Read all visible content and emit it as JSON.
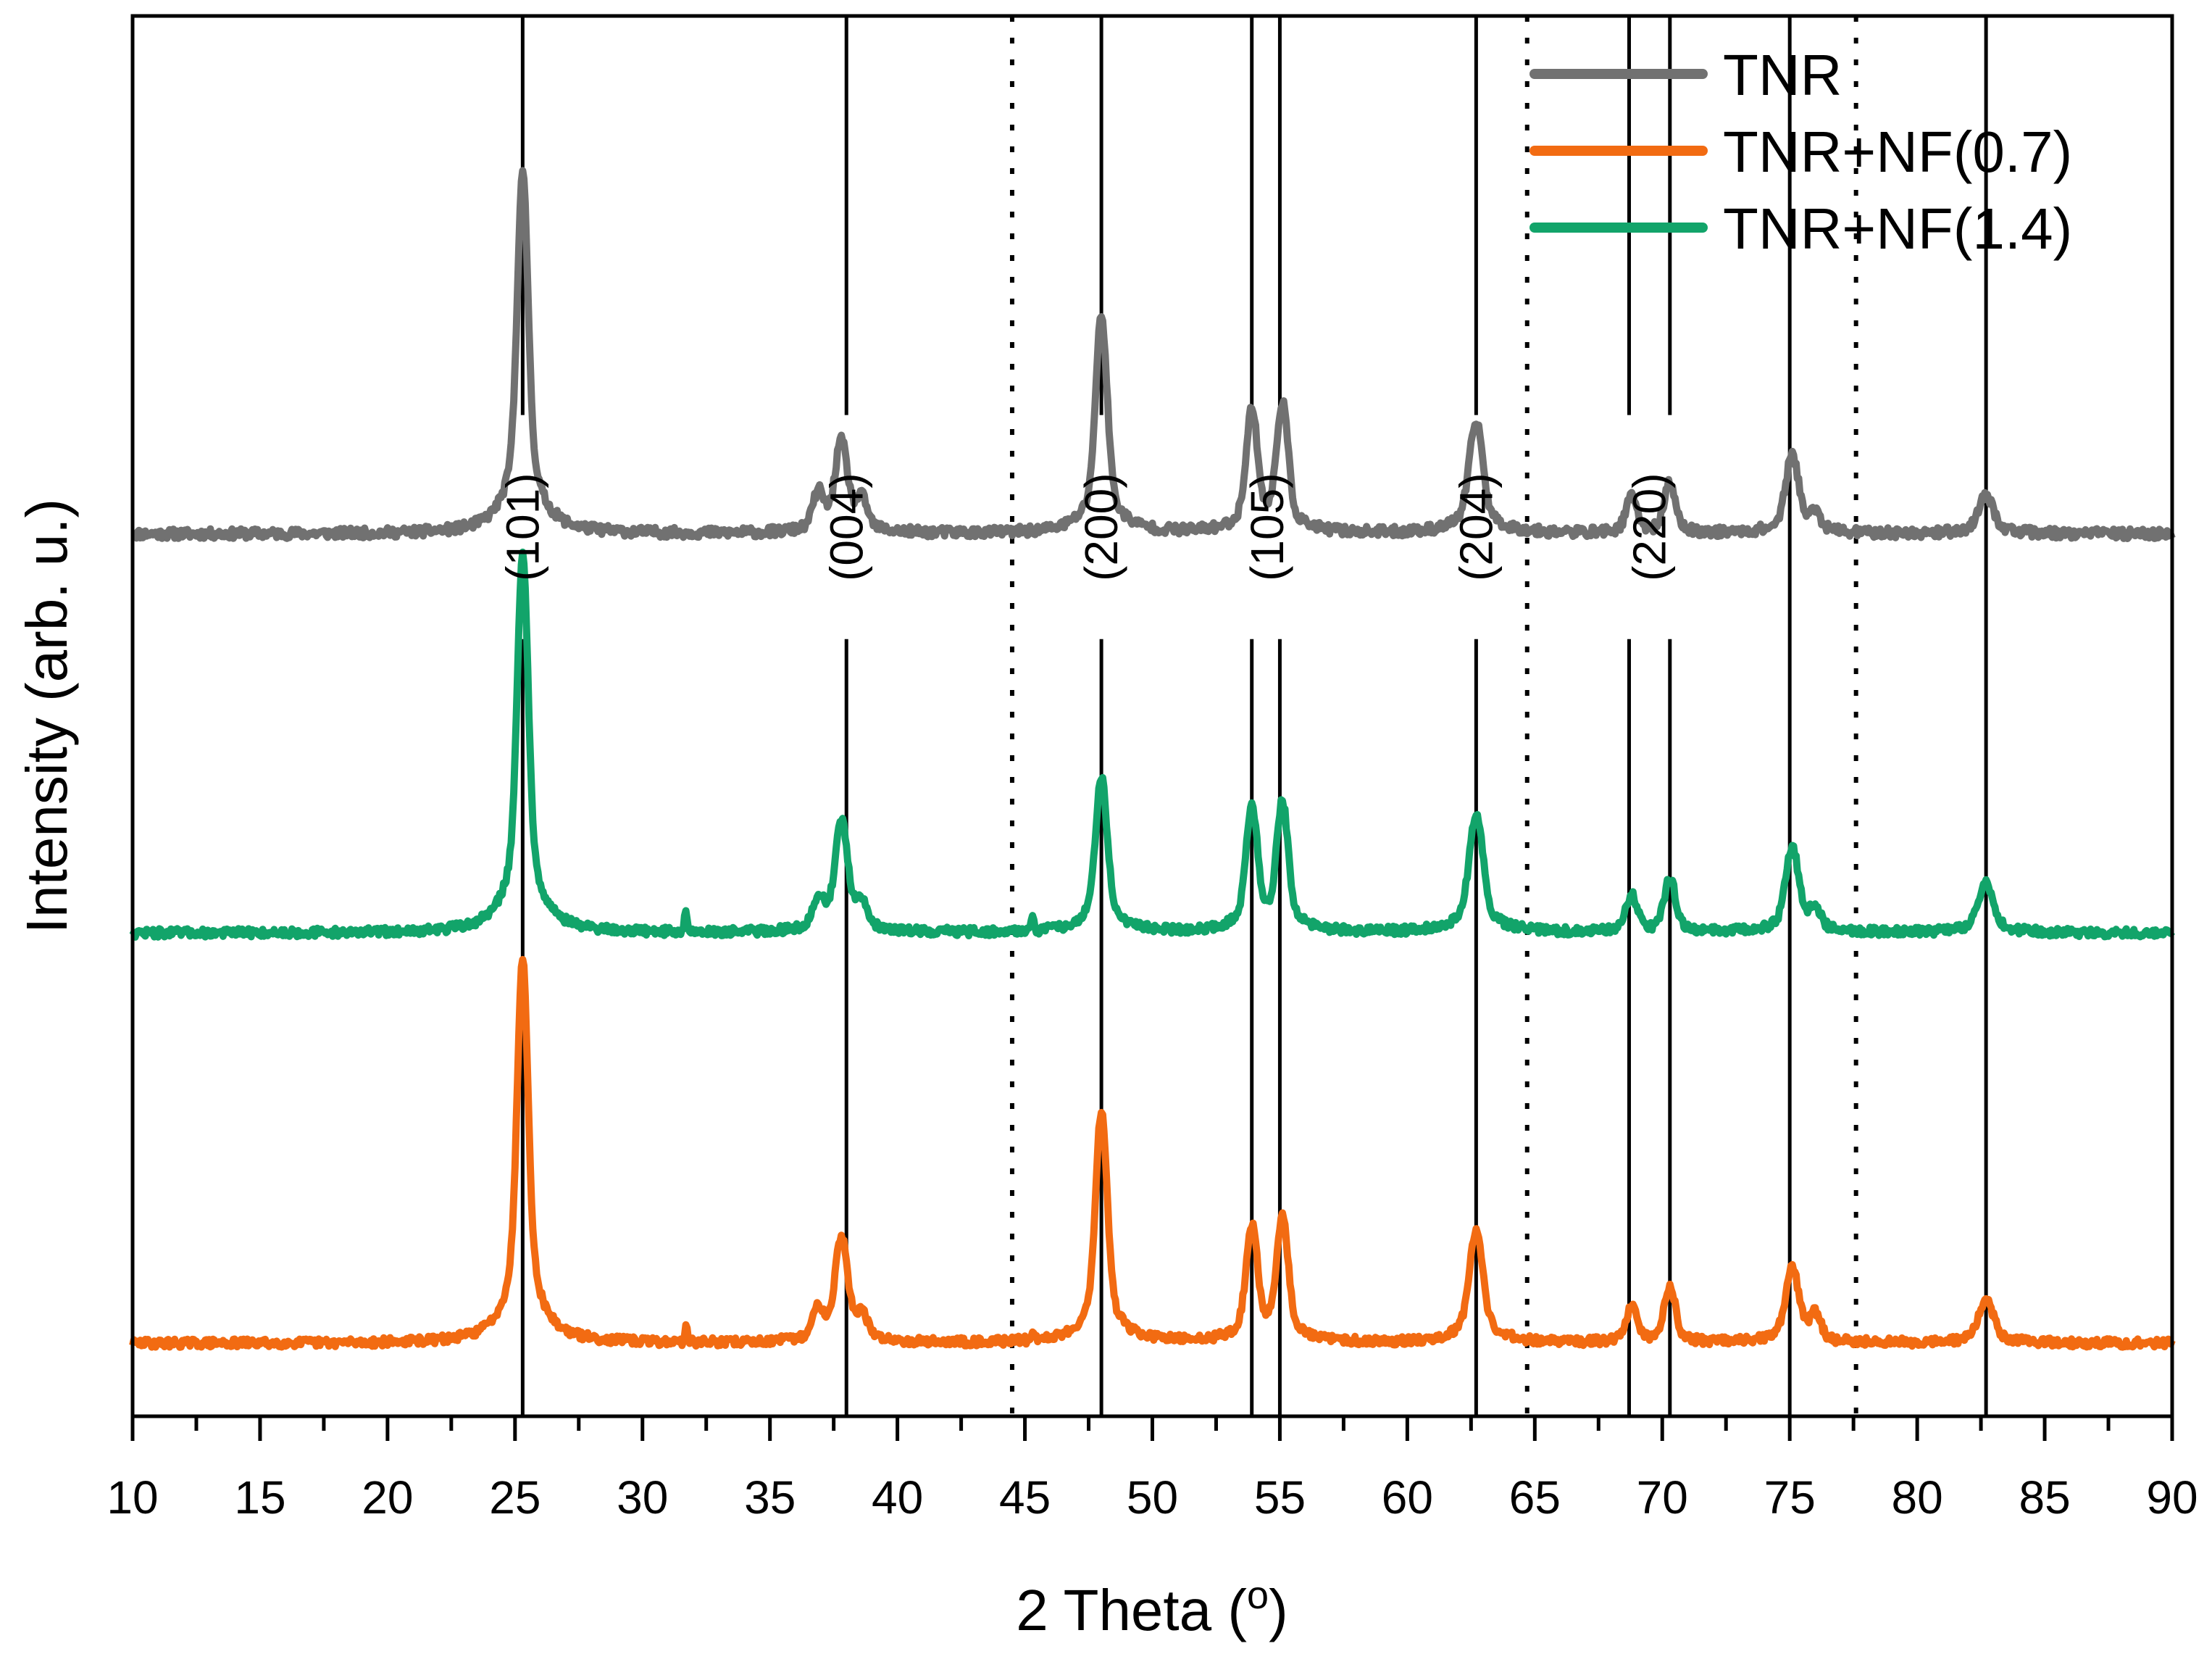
{
  "chart_data": {
    "type": "line",
    "title": "",
    "xlabel": "2 Theta (",
    "xlabel_degree": "o",
    "xlabel_close": ")",
    "ylabel": "Intensity (arb. u.)",
    "xlim": [
      10,
      90
    ],
    "ylim": [
      0,
      1
    ],
    "yticks_shown": false,
    "grid": false,
    "legend_position": "top-right",
    "x_ticks": [
      10,
      15,
      20,
      25,
      30,
      35,
      40,
      45,
      50,
      55,
      60,
      65,
      70,
      75,
      80,
      85,
      90
    ],
    "x_tick_labels": [
      "10",
      "15",
      "20",
      "25",
      "30",
      "35",
      "40",
      "45",
      "50",
      "55",
      "60",
      "65",
      "70",
      "75",
      "80",
      "85",
      "90"
    ],
    "reference_lines_solid": [
      25.3,
      38.0,
      48.0,
      53.9,
      55.0,
      62.7,
      68.7,
      70.3,
      75.0,
      82.7
    ],
    "reference_lines_dotted": [
      44.5,
      64.7,
      77.6
    ],
    "peak_labels": [
      {
        "text": "(101)",
        "x": 25.3
      },
      {
        "text": "(004)",
        "x": 38.0
      },
      {
        "text": "(200)",
        "x": 48.0
      },
      {
        "text": "(105)",
        "x": 54.5
      },
      {
        "text": "(204)",
        "x": 62.7
      },
      {
        "text": "(220)",
        "x": 69.5
      }
    ],
    "peaks": [
      {
        "center": 25.3,
        "width": 0.28,
        "tail": 0.3
      },
      {
        "center": 37.8,
        "width": 0.32,
        "tail": 0.25
      },
      {
        "center": 36.9,
        "width": 0.3,
        "tail": 0.1
      },
      {
        "center": 38.6,
        "width": 0.3,
        "tail": 0.1
      },
      {
        "center": 48.0,
        "width": 0.3,
        "tail": 0.25
      },
      {
        "center": 53.9,
        "width": 0.3,
        "tail": 0.2
      },
      {
        "center": 55.1,
        "width": 0.3,
        "tail": 0.2
      },
      {
        "center": 62.7,
        "width": 0.35,
        "tail": 0.25
      },
      {
        "center": 68.8,
        "width": 0.3,
        "tail": 0.15
      },
      {
        "center": 70.3,
        "width": 0.3,
        "tail": 0.15
      },
      {
        "center": 75.1,
        "width": 0.35,
        "tail": 0.2
      },
      {
        "center": 76.0,
        "width": 0.3,
        "tail": 0.1
      },
      {
        "center": 82.7,
        "width": 0.4,
        "tail": 0.2
      }
    ],
    "series": [
      {
        "name": "TNR",
        "color": "#717171",
        "baseline": 0.63,
        "heights": [
          0.257,
          0.065,
          0.025,
          0.02,
          0.155,
          0.085,
          0.09,
          0.08,
          0.025,
          0.035,
          0.055,
          0.012,
          0.027
        ],
        "spikes": [],
        "noise": 0.0035,
        "seed": 11
      },
      {
        "name": "TNR+NF(0.7)",
        "color": "#F26B12",
        "baseline": 0.052,
        "heights": [
          0.275,
          0.075,
          0.02,
          0.015,
          0.165,
          0.08,
          0.087,
          0.08,
          0.025,
          0.04,
          0.053,
          0.018,
          0.03
        ],
        "spikes": [
          {
            "x": 31.7,
            "h": 0.012
          },
          {
            "x": 45.3,
            "h": 0.008
          }
        ],
        "noise": 0.003,
        "seed": 29
      },
      {
        "name": "TNR+NF(1.4)",
        "color": "#12A46A",
        "baseline": 0.345,
        "heights": [
          0.27,
          0.08,
          0.02,
          0.015,
          0.11,
          0.086,
          0.09,
          0.085,
          0.026,
          0.038,
          0.06,
          0.015,
          0.035
        ],
        "spikes": [
          {
            "x": 31.7,
            "h": 0.015
          },
          {
            "x": 45.3,
            "h": 0.01
          }
        ],
        "noise": 0.003,
        "seed": 47
      }
    ],
    "legend": [
      {
        "label": "TNR",
        "color": "#717171"
      },
      {
        "label": "TNR+NF(0.7)",
        "color": "#F26B12"
      },
      {
        "label": "TNR+NF(1.4)",
        "color": "#12A46A"
      }
    ]
  }
}
